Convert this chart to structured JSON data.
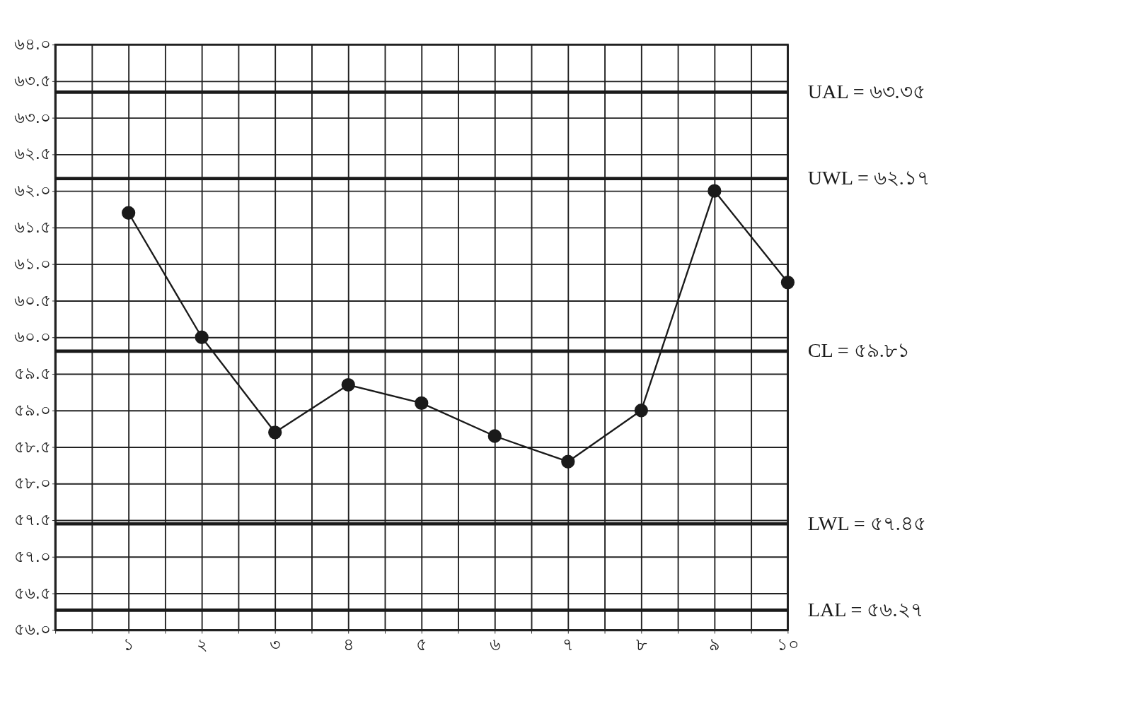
{
  "chart_data": {
    "type": "line",
    "x": [
      1,
      2,
      3,
      4,
      5,
      6,
      7,
      8,
      9,
      10
    ],
    "series": [
      {
        "color": "#1a1a1a",
        "values": [
          61.7,
          60.0,
          58.7,
          59.35,
          59.1,
          58.65,
          58.3,
          59.0,
          62.0,
          60.75
        ]
      }
    ],
    "xlim": [
      0,
      10
    ],
    "xticks": [
      {
        "value": 0,
        "label": null
      },
      {
        "value": 0.5,
        "label": null
      },
      {
        "value": 1,
        "label": "১"
      },
      {
        "value": 1.5,
        "label": null
      },
      {
        "value": 2,
        "label": "২"
      },
      {
        "value": 2.5,
        "label": null
      },
      {
        "value": 3,
        "label": "৩"
      },
      {
        "value": 3.5,
        "label": null
      },
      {
        "value": 4,
        "label": "৪"
      },
      {
        "value": 4.5,
        "label": null
      },
      {
        "value": 5,
        "label": "৫"
      },
      {
        "value": 5.5,
        "label": null
      },
      {
        "value": 6,
        "label": "৬"
      },
      {
        "value": 6.5,
        "label": null
      },
      {
        "value": 7,
        "label": "৭"
      },
      {
        "value": 7.5,
        "label": null
      },
      {
        "value": 8,
        "label": "৮"
      },
      {
        "value": 8.5,
        "label": null
      },
      {
        "value": 9,
        "label": "৯"
      },
      {
        "value": 9.5,
        "label": null
      },
      {
        "value": 10,
        "label": "১০"
      }
    ],
    "ylim": [
      56,
      64
    ],
    "yticks": [
      {
        "value": 56,
        "label": "৫৬.০"
      },
      {
        "value": 56.5,
        "label": "৫৬.৫"
      },
      {
        "value": 57,
        "label": "৫৭.০"
      },
      {
        "value": 57.5,
        "label": "৫৭.৫"
      },
      {
        "value": 58,
        "label": "৫৮.০"
      },
      {
        "value": 58.5,
        "label": "৫৮.৫"
      },
      {
        "value": 59,
        "label": "৫৯.০"
      },
      {
        "value": 59.5,
        "label": "৫৯.৫"
      },
      {
        "value": 60,
        "label": "৬০.০"
      },
      {
        "value": 60.5,
        "label": "৬০.৫"
      },
      {
        "value": 61,
        "label": "৬১.০"
      },
      {
        "value": 61.5,
        "label": "৬১.৫"
      },
      {
        "value": 62,
        "label": "৬২.০"
      },
      {
        "value": 62.5,
        "label": "৬২.৫"
      },
      {
        "value": 63,
        "label": "৬৩.০"
      },
      {
        "value": 63.5,
        "label": "৬৩.৫"
      },
      {
        "value": 64,
        "label": "৬৪.০"
      }
    ],
    "ref_lines": [
      {
        "axis": "y",
        "value": 63.35,
        "label": "UAL = ৬৩.৩৫"
      },
      {
        "axis": "y",
        "value": 62.17,
        "label": "UWL = ৬২.১৭"
      },
      {
        "axis": "y",
        "value": 59.81,
        "label": "CL = ৫৯.৮১"
      },
      {
        "axis": "y",
        "value": 57.45,
        "label": "LWL = ৫৭.৪৫"
      },
      {
        "axis": "y",
        "value": 56.27,
        "label": "LAL = ৫৬.২৭"
      }
    ],
    "grid": true,
    "marker": "circle",
    "line_style": "solid"
  }
}
